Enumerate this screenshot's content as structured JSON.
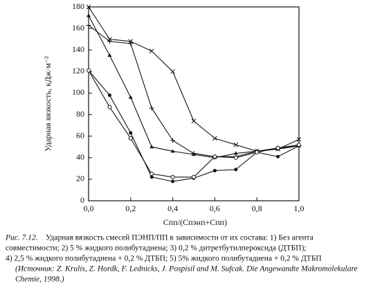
{
  "chart_data": {
    "type": "line",
    "y_label": "Ударная вязкость, кДж·м⁻²",
    "x_label": "Cпп/(Cпэнп+Cпп)",
    "x": [
      0,
      0.1,
      0.2,
      0.3,
      0.4,
      0.5,
      0.6,
      0.7,
      0.8,
      0.9,
      1.0
    ],
    "series": [
      {
        "color": "#111111",
        "marker": "x",
        "values": [
          180,
          150,
          148,
          139,
          120,
          74,
          58,
          52,
          46,
          48,
          57
        ]
      },
      {
        "color": "#111111",
        "marker": "triangle",
        "values": [
          172,
          135,
          96,
          50,
          46,
          43,
          40,
          44,
          46,
          48,
          51
        ]
      },
      {
        "color": "#111111",
        "marker": "plus",
        "values": [
          163,
          148,
          146,
          86,
          56,
          44,
          41,
          41,
          46,
          49,
          51
        ]
      },
      {
        "color": "#111111",
        "marker": "dot",
        "values": [
          121,
          98,
          63,
          22,
          18,
          21,
          28,
          29,
          45,
          41,
          51
        ]
      },
      {
        "color": "#111111",
        "marker": "circle",
        "values": [
          121,
          87,
          58,
          25,
          22,
          22,
          41,
          40,
          45,
          49,
          52
        ]
      }
    ],
    "xlim": [
      0,
      1.0
    ],
    "ylim": [
      0,
      180
    ],
    "xticks": [
      {
        "value": 0,
        "label": "0,0"
      },
      {
        "value": 0.2,
        "label": "0,2"
      },
      {
        "value": 0.4,
        "label": "0,4"
      },
      {
        "value": 0.6,
        "label": "0,6"
      },
      {
        "value": 0.8,
        "label": "0,8"
      },
      {
        "value": 1.0,
        "label": "1,0"
      }
    ],
    "yticks": [
      0,
      20,
      40,
      60,
      80,
      100,
      120,
      140,
      160,
      180
    ]
  },
  "caption": {
    "label": "Рис. 7.12.",
    "lines": [
      "Ударная вязкость смесей ПЭНП/ПП в зависимости от их состава: 1) Без агента",
      "совместимости; 2) 5 % жидкого полибутадиена; 3) 0,2 % дитретбутилпероксида (ДТБП);",
      "4) 2,5 % жидкого полибутадиена + 0,2 % ДТБП; 5) 5% жидкого полибутадиена + 0,2 % ДТБП",
      "(Источник: Z. Krulis, Z. Hordk, F. Lednicks, J. Pospisil and M. Sufcak. Die Angewandte Makromolekulare",
      "Chemie, 1998.)"
    ]
  }
}
